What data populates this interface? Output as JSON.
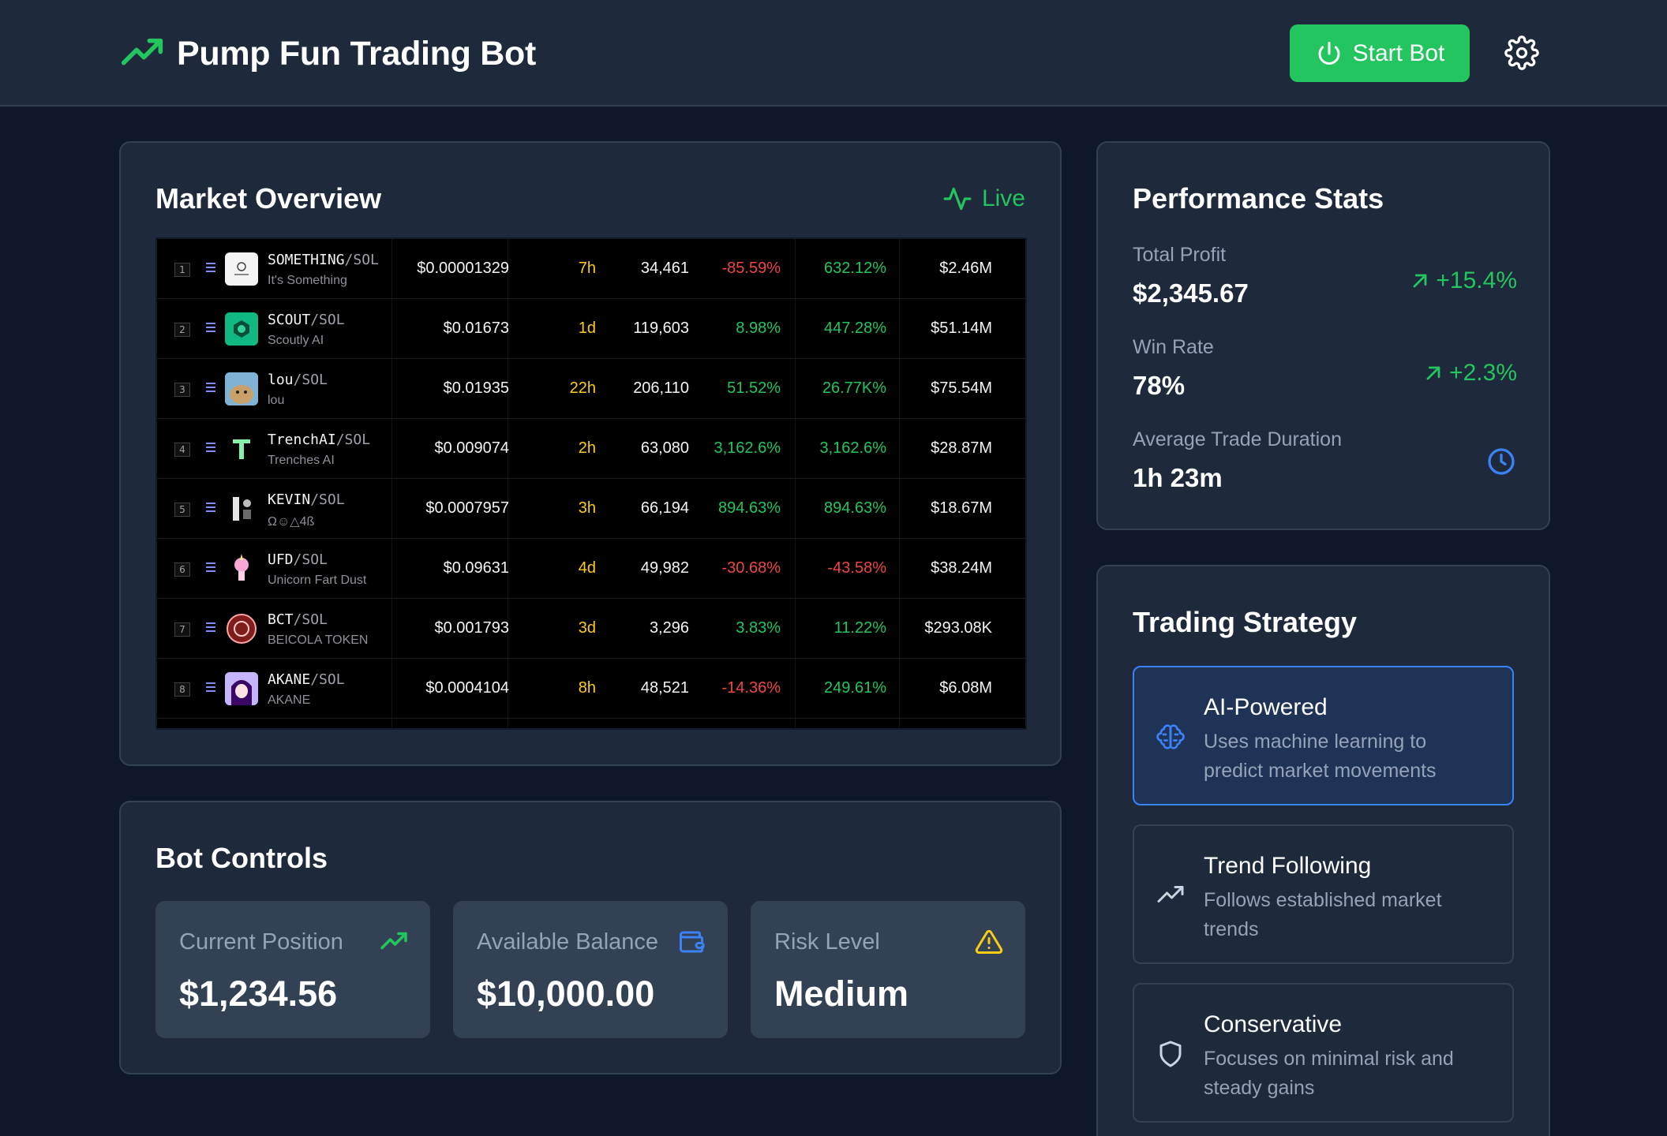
{
  "header": {
    "title": "Pump Fun Trading Bot",
    "logo_icon": "trending-up-icon",
    "start_label": "Start Bot",
    "settings_icon": "gear-icon"
  },
  "market": {
    "title": "Market Overview",
    "live_label": "Live",
    "tokens": [
      {
        "rank": "1",
        "symbol": "SOMETHING",
        "pair": "/SOL",
        "name": "It's Something",
        "price": "$0.00001329",
        "age": "7h",
        "txns": "34,461",
        "change_a": "-85.59%",
        "change_b": "632.12%",
        "mcap": "$2.46M"
      },
      {
        "rank": "2",
        "symbol": "SCOUT",
        "pair": "/SOL",
        "name": "Scoutly AI",
        "price": "$0.01673",
        "age": "1d",
        "txns": "119,603",
        "change_a": "8.98%",
        "change_b": "447.28%",
        "mcap": "$51.14M"
      },
      {
        "rank": "3",
        "symbol": "lou",
        "pair": "/SOL",
        "name": "lou",
        "price": "$0.01935",
        "age": "22h",
        "txns": "206,110",
        "change_a": "51.52%",
        "change_b": "26.77K%",
        "mcap": "$75.54M"
      },
      {
        "rank": "4",
        "symbol": "TrenchAI",
        "pair": "/SOL",
        "name": "Trenches AI",
        "price": "$0.009074",
        "age": "2h",
        "txns": "63,080",
        "change_a": "3,162.6%",
        "change_b": "3,162.6%",
        "mcap": "$28.87M"
      },
      {
        "rank": "5",
        "symbol": "KEVIN",
        "pair": "/SOL",
        "name": "Ω☺△4ß",
        "price": "$0.0007957",
        "age": "3h",
        "txns": "66,194",
        "change_a": "894.63%",
        "change_b": "894.63%",
        "mcap": "$18.67M"
      },
      {
        "rank": "6",
        "symbol": "UFD",
        "pair": "/SOL",
        "name": "Unicorn Fart Dust",
        "price": "$0.09631",
        "age": "4d",
        "txns": "49,982",
        "change_a": "-30.68%",
        "change_b": "-43.58%",
        "mcap": "$38.24M"
      },
      {
        "rank": "7",
        "symbol": "BCT",
        "pair": "/SOL",
        "name": "BEICOLA TOKEN",
        "price": "$0.001793",
        "age": "3d",
        "txns": "3,296",
        "change_a": "3.83%",
        "change_b": "11.22%",
        "mcap": "$293.08K"
      },
      {
        "rank": "8",
        "symbol": "AKANE",
        "pair": "/SOL",
        "name": "AKANE",
        "price": "$0.0004104",
        "age": "8h",
        "txns": "48,521",
        "change_a": "-14.36%",
        "change_b": "249.61%",
        "mcap": "$6.08M"
      }
    ]
  },
  "controls": {
    "title": "Bot Controls",
    "current_position": {
      "label": "Current Position",
      "value": "$1,234.56"
    },
    "available_balance": {
      "label": "Available Balance",
      "value": "$10,000.00"
    },
    "risk_level": {
      "label": "Risk Level",
      "value": "Medium"
    }
  },
  "performance": {
    "title": "Performance Stats",
    "total_profit": {
      "label": "Total Profit",
      "value": "$2,345.67",
      "delta": "+15.4%"
    },
    "win_rate": {
      "label": "Win Rate",
      "value": "78%",
      "delta": "+2.3%"
    },
    "avg_duration": {
      "label": "Average Trade Duration",
      "value": "1h 23m"
    }
  },
  "strategy": {
    "title": "Trading Strategy",
    "options": [
      {
        "name": "AI-Powered",
        "desc": "Uses machine learning to predict market movements",
        "icon": "brain-icon"
      },
      {
        "name": "Trend Following",
        "desc": "Follows established market trends",
        "icon": "trending-up-icon"
      },
      {
        "name": "Conservative",
        "desc": "Focuses on minimal risk and steady gains",
        "icon": "shield-icon"
      }
    ]
  },
  "colors": {
    "background": "#0f172a",
    "card": "#1e293b",
    "accent_green": "#22c55e",
    "negative_red": "#ef4444",
    "accent_blue": "#3b82f6",
    "warning_yellow": "#facc15"
  }
}
